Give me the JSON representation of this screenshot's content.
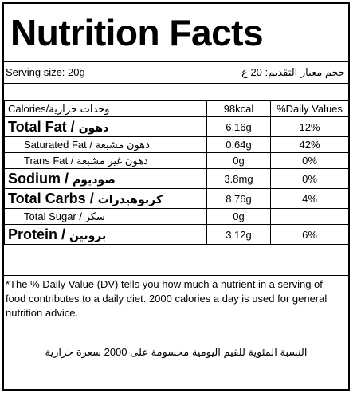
{
  "title": "Nutrition Facts",
  "serving": {
    "en": "Serving size: 20g",
    "ar": "حجم معيار التقديم: 20 غ"
  },
  "header": {
    "calories": "Calories/وحدات حرارية",
    "calories_value": "98kcal",
    "daily_values": "%Daily Values"
  },
  "rows": [
    {
      "en": "Total Fat",
      "ar": "دهون",
      "amount": "6.16g",
      "dv": "12%"
    },
    {
      "en": "Saturated Fat",
      "ar": "دهون مشبعة",
      "amount": "0.64g",
      "dv": "42%"
    },
    {
      "en": "Trans Fat",
      "ar": "دهون غير مشبعة",
      "amount": "0g",
      "dv": "0%"
    },
    {
      "en": "Sodium",
      "ar": "صوديوم",
      "amount": "3.8mg",
      "dv": "0%"
    },
    {
      "en": "Total Carbs",
      "ar": "كربوهيدرات",
      "amount": "8.76g",
      "dv": "4%"
    },
    {
      "en": "Total Sugar",
      "ar": "سكر",
      "amount": "0g",
      "dv": ""
    },
    {
      "en": "Protein",
      "ar": "بروتين",
      "amount": "3.12g",
      "dv": "6%"
    }
  ],
  "separator": " / ",
  "footnote": {
    "en": "*The % Daily Value (DV) tells you how much a nutrient in a serving of food contributes to a daily diet. 2000 calories a day is used for general nutrition advice.",
    "ar": "النسبة المئوية للقيم اليومية محسومة على 2000 سعرة حرارية"
  }
}
